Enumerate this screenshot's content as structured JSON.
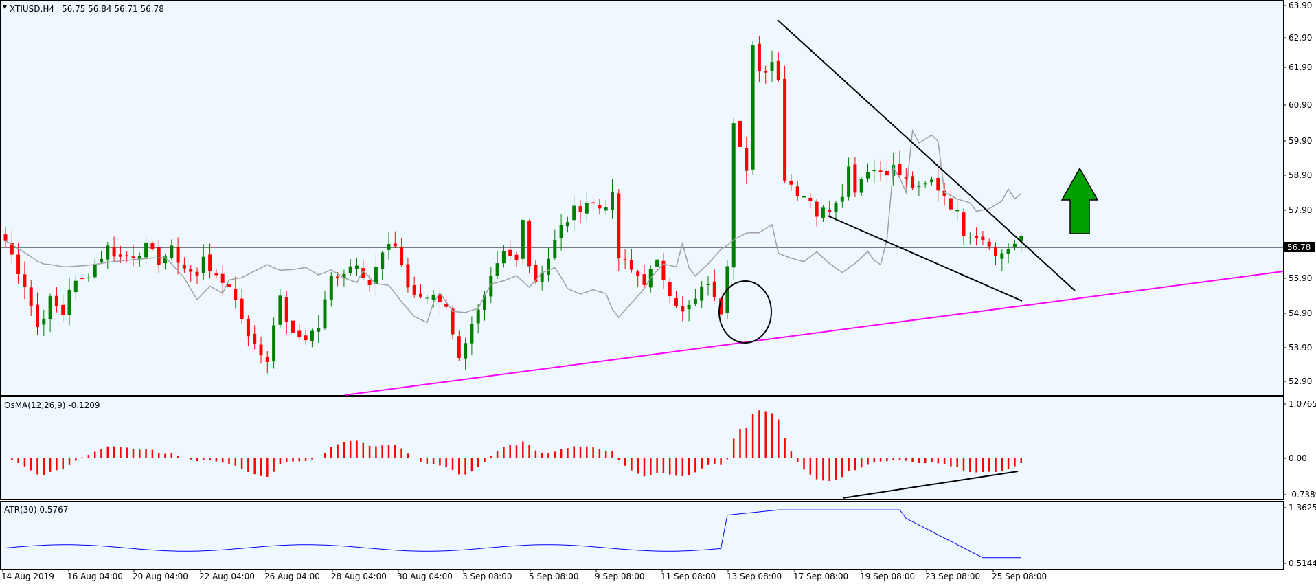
{
  "header": {
    "symbol_tf": "XTIUSD,H4",
    "ohlc": "56.75 56.84 56.71 56.78"
  },
  "price_badge": "56.78",
  "chart_data": [
    {
      "type": "candlestick",
      "title": "XTIUSD,H4",
      "ylim": [
        52.4,
        63.9
      ],
      "y_ticks": [
        "63.90",
        "62.90",
        "61.90",
        "60.90",
        "59.90",
        "58.90",
        "57.90",
        "56.90",
        "55.90",
        "54.90",
        "53.90",
        "52.90"
      ],
      "x_ticks": [
        "14 Aug 2019",
        "16 Aug 04:00",
        "20 Aug 04:00",
        "22 Aug 04:00",
        "26 Aug 04:00",
        "28 Aug 04:00",
        "30 Aug 04:00",
        "3 Sep 08:00",
        "5 Sep 08:00",
        "9 Sep 08:00",
        "11 Sep 08:00",
        "13 Sep 08:00",
        "17 Sep 08:00",
        "19 Sep 08:00",
        "23 Sep 08:00",
        "25 Sep 08:00"
      ],
      "path": [
        [
          0,
          56.8
        ],
        [
          3,
          55.5
        ],
        [
          5,
          54.2
        ],
        [
          7,
          55.0
        ],
        [
          9,
          54.6
        ],
        [
          10,
          55.4
        ],
        [
          12,
          55.6
        ],
        [
          14,
          56.1
        ],
        [
          16,
          56.6
        ],
        [
          18,
          56.3
        ],
        [
          20,
          56.4
        ],
        [
          22,
          56.6
        ],
        [
          24,
          56.2
        ],
        [
          26,
          56.5
        ],
        [
          28,
          56.0
        ],
        [
          30,
          55.7
        ],
        [
          31,
          56.4
        ],
        [
          33,
          55.6
        ],
        [
          35,
          55.5
        ],
        [
          37,
          54.5
        ],
        [
          39,
          53.6
        ],
        [
          41,
          53.2
        ],
        [
          42,
          54.4
        ],
        [
          43,
          55.0
        ],
        [
          45,
          53.9
        ],
        [
          47,
          53.9
        ],
        [
          49,
          54.2
        ],
        [
          51,
          55.7
        ],
        [
          53,
          55.9
        ],
        [
          55,
          56.2
        ],
        [
          57,
          55.5
        ],
        [
          59,
          56.4
        ],
        [
          61,
          56.7
        ],
        [
          62,
          56.1
        ],
        [
          63,
          55.4
        ],
        [
          65,
          55.0
        ],
        [
          67,
          55.2
        ],
        [
          69,
          54.9
        ],
        [
          70,
          53.9
        ],
        [
          71,
          53.4
        ],
        [
          73,
          54.2
        ],
        [
          75,
          55.0
        ],
        [
          76,
          55.6
        ],
        [
          78,
          56.4
        ],
        [
          80,
          56.2
        ],
        [
          81,
          57.6
        ],
        [
          82,
          56.1
        ],
        [
          83,
          55.6
        ],
        [
          85,
          56.3
        ],
        [
          87,
          57.2
        ],
        [
          89,
          57.7
        ],
        [
          91,
          58.0
        ],
        [
          93,
          57.8
        ],
        [
          95,
          58.1
        ],
        [
          96,
          56.3
        ],
        [
          98,
          55.9
        ],
        [
          100,
          55.6
        ],
        [
          102,
          56.1
        ],
        [
          104,
          55.3
        ],
        [
          106,
          54.6
        ],
        [
          108,
          55.0
        ],
        [
          110,
          55.6
        ],
        [
          111,
          55.0
        ],
        [
          112,
          54.7
        ],
        [
          113,
          56.2
        ],
        [
          114,
          60.5
        ],
        [
          115,
          59.8
        ],
        [
          116,
          58.9
        ],
        [
          117,
          62.6
        ],
        [
          118,
          61.8
        ],
        [
          120,
          62.2
        ],
        [
          121,
          61.8
        ],
        [
          122,
          58.7
        ],
        [
          124,
          58.3
        ],
        [
          126,
          58.1
        ],
        [
          127,
          57.6
        ],
        [
          129,
          57.8
        ],
        [
          131,
          58.3
        ],
        [
          132,
          59.0
        ],
        [
          133,
          58.4
        ],
        [
          135,
          59.0
        ],
        [
          137,
          58.9
        ],
        [
          139,
          59.0
        ],
        [
          141,
          58.6
        ],
        [
          143,
          58.3
        ],
        [
          145,
          58.6
        ],
        [
          147,
          58.2
        ],
        [
          149,
          57.6
        ],
        [
          150,
          57.1
        ],
        [
          152,
          57.0
        ],
        [
          154,
          56.8
        ],
        [
          155,
          56.3
        ],
        [
          157,
          56.6
        ],
        [
          159,
          56.8
        ]
      ]
    },
    {
      "type": "histogram",
      "title": "OsMA(12,26,9) -0.1209",
      "ylim": [
        -0.7389,
        1.0765
      ],
      "y_ticks": [
        "1.0765",
        "0.00",
        "-0.7389"
      ]
    },
    {
      "type": "line",
      "title": "ATR(30) 0.5767",
      "ylim": [
        0.5144,
        1.3625
      ],
      "y_ticks": [
        "1.3625",
        "0.5144"
      ]
    }
  ],
  "colors": {
    "bull": "#008000",
    "bear": "#ff0000",
    "ma": "#a0a0a0",
    "trend": "#ff00ff",
    "atr": "#0000ff",
    "arrow": "#00a000",
    "bg": "#f0f8ff"
  }
}
